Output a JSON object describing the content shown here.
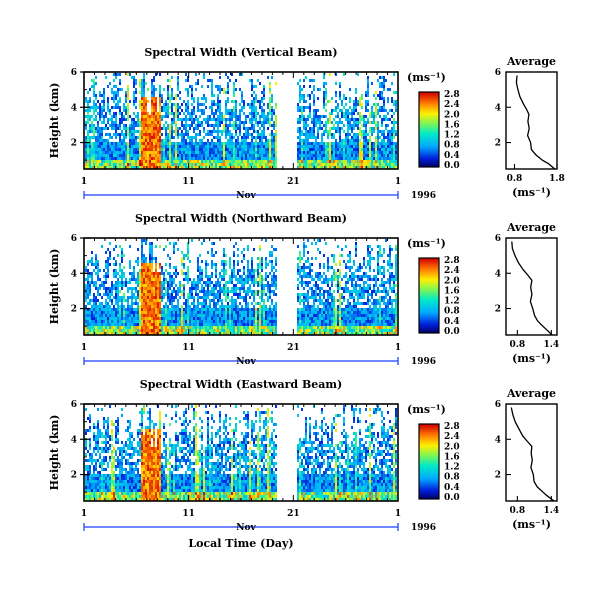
{
  "chart_data": [
    {
      "type": "heatmap",
      "title": "Spectral Width (Vertical Beam)",
      "ylabel": "Height (km)",
      "x_ticks": [
        "1",
        "11",
        "21",
        "1"
      ],
      "y_ticks": [
        "2",
        "4",
        "6"
      ],
      "month_label": "Nov",
      "year_label": "1996",
      "colorbar_unit": "(ms⁻¹)",
      "colorbar_ticks": [
        "2.8",
        "2.4",
        "2.0",
        "1.6",
        "1.2",
        "0.8",
        "0.4",
        "0.0"
      ],
      "colorbar_range": [
        0,
        2.8
      ],
      "ylim": [
        0.5,
        6
      ],
      "data_gap_days": [
        19.3,
        21.2
      ],
      "profile": {
        "title": "Average",
        "xlabel": "(ms⁻¹)",
        "x_ticks": [
          "0.8",
          "1.8"
        ],
        "xlim": [
          0.6,
          1.8
        ],
        "y_ticks": [
          "2",
          "4",
          "6"
        ],
        "ylim": [
          0.5,
          6
        ],
        "height": [
          0.5,
          0.8,
          1.0,
          1.3,
          1.6,
          2.0,
          2.4,
          2.8,
          3.2,
          3.6,
          3.9,
          4.2,
          4.6,
          5.0,
          5.4,
          5.8
        ],
        "value": [
          1.75,
          1.6,
          1.45,
          1.3,
          1.2,
          1.17,
          1.12,
          1.15,
          1.12,
          1.14,
          1.08,
          1.0,
          0.92,
          0.88,
          0.85,
          0.85
        ]
      }
    },
    {
      "type": "heatmap",
      "title": "Spectral Width (Northward Beam)",
      "ylabel": "Height (km)",
      "x_ticks": [
        "1",
        "11",
        "21",
        "1"
      ],
      "y_ticks": [
        "2",
        "4",
        "6"
      ],
      "month_label": "Nov",
      "year_label": "1996",
      "colorbar_unit": "(ms⁻¹)",
      "colorbar_ticks": [
        "2.8",
        "2.4",
        "2.0",
        "1.6",
        "1.2",
        "0.8",
        "0.4",
        "0.0"
      ],
      "colorbar_range": [
        0,
        2.8
      ],
      "ylim": [
        0.5,
        6
      ],
      "data_gap_days": [
        19.3,
        21.2
      ],
      "profile": {
        "title": "Average",
        "xlabel": "(ms⁻¹)",
        "x_ticks": [
          "0.8",
          "1.4"
        ],
        "xlim": [
          0.6,
          1.5
        ],
        "y_ticks": [
          "2",
          "4",
          "6"
        ],
        "ylim": [
          0.5,
          6
        ],
        "height": [
          0.5,
          0.8,
          1.0,
          1.3,
          1.6,
          2.0,
          2.4,
          2.8,
          3.2,
          3.6,
          3.9,
          4.2,
          4.6,
          5.0,
          5.4,
          5.8
        ],
        "value": [
          1.42,
          1.32,
          1.25,
          1.15,
          1.1,
          1.08,
          1.03,
          1.06,
          1.03,
          1.05,
          0.98,
          0.9,
          0.82,
          0.76,
          0.72,
          0.7
        ]
      }
    },
    {
      "type": "heatmap",
      "title": "Spectral Width (Eastward Beam)",
      "ylabel": "Height (km)",
      "xlabel": "Local Time (Day)",
      "x_ticks": [
        "1",
        "11",
        "21",
        "1"
      ],
      "y_ticks": [
        "2",
        "4",
        "6"
      ],
      "month_label": "Nov",
      "year_label": "1996",
      "colorbar_unit": "(ms⁻¹)",
      "colorbar_ticks": [
        "2.8",
        "2.4",
        "2.0",
        "1.6",
        "1.2",
        "0.8",
        "0.4",
        "0.0"
      ],
      "colorbar_range": [
        0,
        2.8
      ],
      "ylim": [
        0.5,
        6
      ],
      "data_gap_days": [
        19.3,
        21.2
      ],
      "profile": {
        "title": "Average",
        "xlabel": "(ms⁻¹)",
        "x_ticks": [
          "0.8",
          "1.4"
        ],
        "xlim": [
          0.6,
          1.5
        ],
        "y_ticks": [
          "2",
          "4",
          "6"
        ],
        "ylim": [
          0.5,
          6
        ],
        "height": [
          0.5,
          0.8,
          1.0,
          1.3,
          1.6,
          2.0,
          2.4,
          2.8,
          3.2,
          3.6,
          3.9,
          4.2,
          4.6,
          5.0,
          5.4,
          5.8
        ],
        "value": [
          1.44,
          1.33,
          1.26,
          1.16,
          1.1,
          1.08,
          1.04,
          1.07,
          1.04,
          1.06,
          0.98,
          0.9,
          0.82,
          0.76,
          0.72,
          0.7
        ]
      }
    }
  ]
}
